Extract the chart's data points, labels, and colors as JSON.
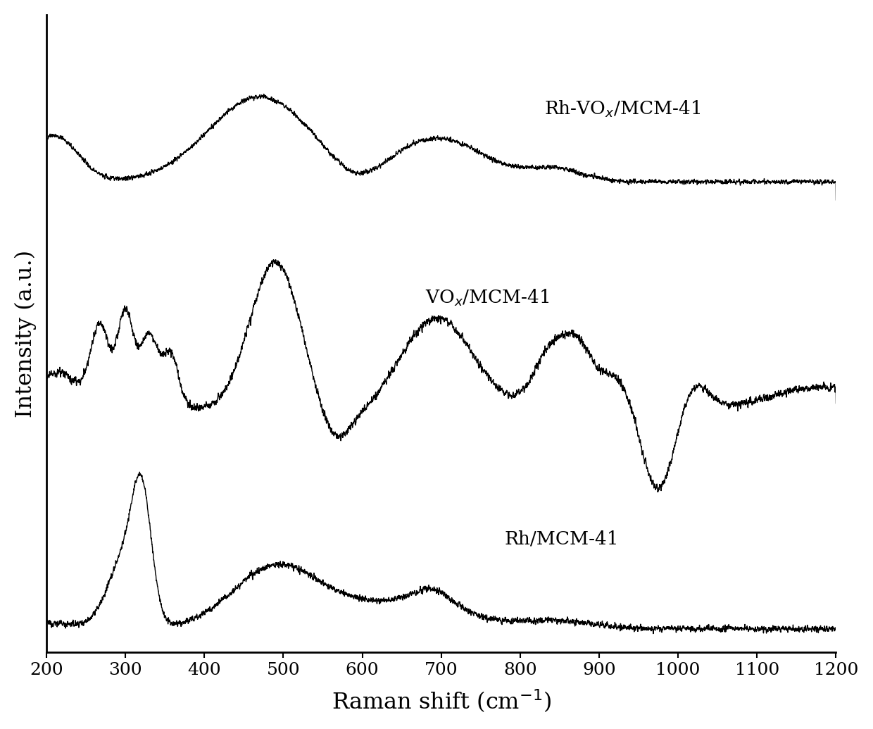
{
  "title": "",
  "xlabel": "Raman shift (cm$^{-1}$)",
  "ylabel": "Intensity (a.u.)",
  "xlim": [
    200,
    1200
  ],
  "background_color": "#ffffff",
  "line_color": "#000000",
  "labels": {
    "rh_mcm": "Rh/MCM-41",
    "vox_mcm": "VO$_x$/MCM-41",
    "rh_vox_mcm": "Rh-VO$_x$/MCM-41"
  },
  "xticks": [
    200,
    300,
    400,
    500,
    600,
    700,
    800,
    900,
    1000,
    1100,
    1200
  ],
  "noise_seed": 12345
}
